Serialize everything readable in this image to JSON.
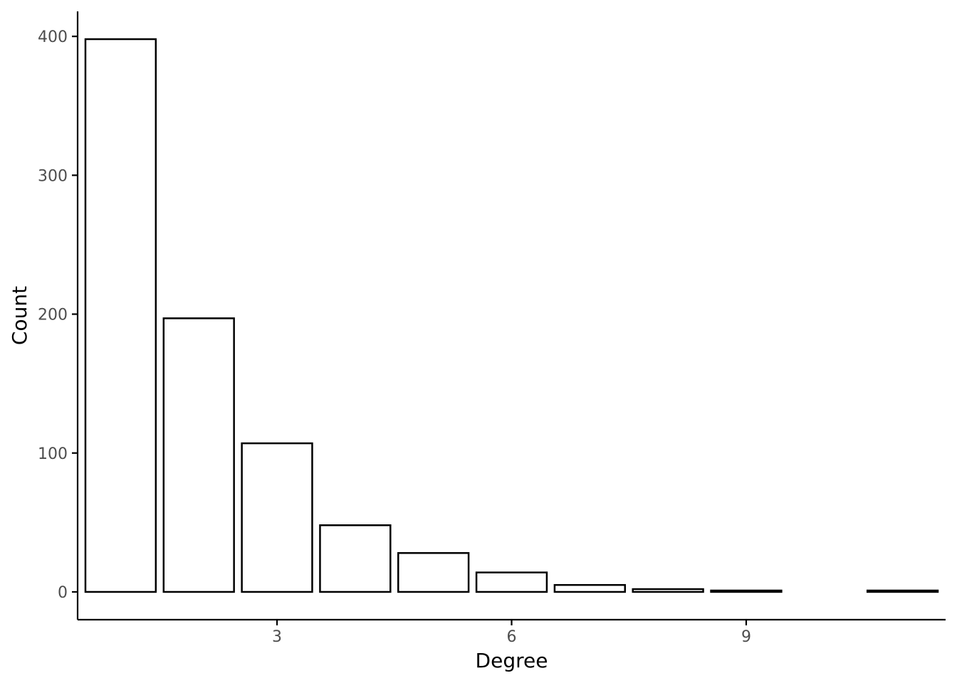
{
  "chart_data": {
    "type": "bar",
    "title": "",
    "xlabel": "Degree",
    "ylabel": "Count",
    "x": [
      1,
      2,
      3,
      4,
      5,
      6,
      7,
      8,
      9,
      11
    ],
    "values": [
      398,
      197,
      107,
      48,
      28,
      14,
      5,
      2,
      1,
      1
    ],
    "xlim": [
      0.45,
      11.55
    ],
    "ylim": [
      -20,
      418
    ],
    "xticks": [
      3,
      6,
      9
    ],
    "yticks": [
      0,
      100,
      200,
      300,
      400
    ],
    "xtick_labels": [
      "3",
      "6",
      "9"
    ],
    "ytick_labels": [
      "0",
      "100",
      "200",
      "300",
      "400"
    ],
    "grid": false,
    "legend": "none",
    "colors": {
      "bar_fill": "#ffffff",
      "bar_outline": "#000000",
      "tick_text": "#4d4d4d"
    }
  }
}
